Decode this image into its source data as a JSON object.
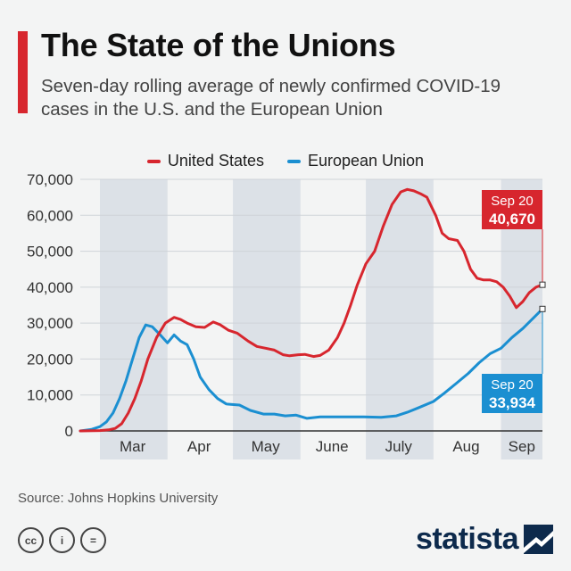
{
  "header": {
    "title": "The State of the Unions",
    "subtitle": "Seven-day rolling average of newly confirmed COVID-19 cases in the U.S. and the European Union"
  },
  "footer": {
    "source": "Source: Johns Hopkins University",
    "brand": "statista",
    "license_icons": [
      "cc-icon",
      "by-icon",
      "nd-icon"
    ],
    "license_glyphs": [
      "cc",
      "i",
      "="
    ]
  },
  "colors": {
    "us": "#d7262e",
    "eu": "#1b8fd1",
    "band": "#dce1e7",
    "grid": "#cfd3d8",
    "axis": "#333333",
    "brand": "#0d2a4c"
  },
  "chart_data": {
    "type": "line",
    "x_axis": "date",
    "xlim": [
      "2020-02-21",
      "2020-09-20"
    ],
    "ylim": [
      0,
      70000
    ],
    "yticks": [
      0,
      10000,
      20000,
      30000,
      40000,
      50000,
      60000,
      70000
    ],
    "ytick_labels": [
      "0",
      "10,000",
      "20,000",
      "30,000",
      "40,000",
      "50,000",
      "60,000",
      "70,000"
    ],
    "month_labels": [
      {
        "label": "Mar",
        "start": "2020-03-01",
        "end": "2020-03-31",
        "shaded": true
      },
      {
        "label": "Apr",
        "start": "2020-04-01",
        "end": "2020-04-30",
        "shaded": false
      },
      {
        "label": "May",
        "start": "2020-05-01",
        "end": "2020-05-31",
        "shaded": true
      },
      {
        "label": "June",
        "start": "2020-06-01",
        "end": "2020-06-30",
        "shaded": false
      },
      {
        "label": "July",
        "start": "2020-07-01",
        "end": "2020-07-31",
        "shaded": true
      },
      {
        "label": "Aug",
        "start": "2020-08-01",
        "end": "2020-08-31",
        "shaded": false
      },
      {
        "label": "Sep",
        "start": "2020-09-01",
        "end": "2020-09-20",
        "shaded": true
      }
    ],
    "grid": true,
    "legend_position": "top-center",
    "series": [
      {
        "name": "United States",
        "color": "#d7262e",
        "points": [
          [
            "2020-02-21",
            0
          ],
          [
            "2020-03-01",
            100
          ],
          [
            "2020-03-05",
            300
          ],
          [
            "2020-03-08",
            700
          ],
          [
            "2020-03-11",
            2000
          ],
          [
            "2020-03-14",
            5000
          ],
          [
            "2020-03-17",
            9000
          ],
          [
            "2020-03-20",
            14000
          ],
          [
            "2020-03-23",
            20000
          ],
          [
            "2020-03-27",
            26000
          ],
          [
            "2020-03-31",
            30000
          ],
          [
            "2020-04-04",
            31600
          ],
          [
            "2020-04-07",
            31000
          ],
          [
            "2020-04-10",
            30000
          ],
          [
            "2020-04-14",
            29000
          ],
          [
            "2020-04-18",
            28800
          ],
          [
            "2020-04-22",
            30300
          ],
          [
            "2020-04-25",
            29600
          ],
          [
            "2020-04-29",
            28000
          ],
          [
            "2020-05-03",
            27200
          ],
          [
            "2020-05-08",
            25000
          ],
          [
            "2020-05-12",
            23500
          ],
          [
            "2020-05-16",
            23000
          ],
          [
            "2020-05-20",
            22500
          ],
          [
            "2020-05-24",
            21200
          ],
          [
            "2020-05-27",
            20900
          ],
          [
            "2020-05-31",
            21200
          ],
          [
            "2020-06-03",
            21300
          ],
          [
            "2020-06-07",
            20700
          ],
          [
            "2020-06-10",
            21000
          ],
          [
            "2020-06-14",
            22500
          ],
          [
            "2020-06-18",
            26000
          ],
          [
            "2020-06-21",
            30000
          ],
          [
            "2020-06-24",
            35000
          ],
          [
            "2020-06-27",
            40500
          ],
          [
            "2020-07-01",
            46500
          ],
          [
            "2020-07-05",
            50000
          ],
          [
            "2020-07-09",
            57000
          ],
          [
            "2020-07-13",
            63000
          ],
          [
            "2020-07-17",
            66500
          ],
          [
            "2020-07-20",
            67200
          ],
          [
            "2020-07-23",
            66800
          ],
          [
            "2020-07-26",
            66000
          ],
          [
            "2020-07-29",
            65000
          ],
          [
            "2020-08-02",
            60000
          ],
          [
            "2020-08-05",
            55000
          ],
          [
            "2020-08-08",
            53500
          ],
          [
            "2020-08-12",
            53000
          ],
          [
            "2020-08-15",
            50000
          ],
          [
            "2020-08-18",
            45000
          ],
          [
            "2020-08-21",
            42500
          ],
          [
            "2020-08-24",
            42000
          ],
          [
            "2020-08-27",
            42000
          ],
          [
            "2020-08-30",
            41500
          ],
          [
            "2020-09-02",
            40000
          ],
          [
            "2020-09-05",
            37500
          ],
          [
            "2020-09-08",
            34300
          ],
          [
            "2020-09-11",
            36000
          ],
          [
            "2020-09-14",
            38500
          ],
          [
            "2020-09-17",
            40000
          ],
          [
            "2020-09-20",
            40670
          ]
        ],
        "end_label": {
          "date": "Sep 20",
          "value": "40,670"
        }
      },
      {
        "name": "European Union",
        "color": "#1b8fd1",
        "points": [
          [
            "2020-02-21",
            0
          ],
          [
            "2020-02-26",
            400
          ],
          [
            "2020-03-01",
            1200
          ],
          [
            "2020-03-04",
            2500
          ],
          [
            "2020-03-07",
            5000
          ],
          [
            "2020-03-10",
            9000
          ],
          [
            "2020-03-13",
            14000
          ],
          [
            "2020-03-16",
            20000
          ],
          [
            "2020-03-19",
            26000
          ],
          [
            "2020-03-22",
            29500
          ],
          [
            "2020-03-25",
            29000
          ],
          [
            "2020-03-29",
            26500
          ],
          [
            "2020-04-01",
            24500
          ],
          [
            "2020-04-04",
            26700
          ],
          [
            "2020-04-07",
            25000
          ],
          [
            "2020-04-10",
            24000
          ],
          [
            "2020-04-13",
            20000
          ],
          [
            "2020-04-16",
            15000
          ],
          [
            "2020-04-20",
            11500
          ],
          [
            "2020-04-24",
            9000
          ],
          [
            "2020-04-28",
            7500
          ],
          [
            "2020-05-04",
            7200
          ],
          [
            "2020-05-09",
            5700
          ],
          [
            "2020-05-15",
            4700
          ],
          [
            "2020-05-20",
            4700
          ],
          [
            "2020-05-25",
            4200
          ],
          [
            "2020-05-30",
            4400
          ],
          [
            "2020-06-04",
            3500
          ],
          [
            "2020-06-10",
            3900
          ],
          [
            "2020-06-20",
            3900
          ],
          [
            "2020-06-30",
            3900
          ],
          [
            "2020-07-08",
            3800
          ],
          [
            "2020-07-15",
            4200
          ],
          [
            "2020-07-20",
            5200
          ],
          [
            "2020-07-25",
            6400
          ],
          [
            "2020-08-01",
            8200
          ],
          [
            "2020-08-06",
            10500
          ],
          [
            "2020-08-11",
            13000
          ],
          [
            "2020-08-17",
            16000
          ],
          [
            "2020-08-22",
            19000
          ],
          [
            "2020-08-27",
            21500
          ],
          [
            "2020-09-01",
            23000
          ],
          [
            "2020-09-06",
            26000
          ],
          [
            "2020-09-11",
            28500
          ],
          [
            "2020-09-16",
            31500
          ],
          [
            "2020-09-20",
            33934
          ]
        ],
        "end_label": {
          "date": "Sep 20",
          "value": "33,934"
        }
      }
    ]
  }
}
